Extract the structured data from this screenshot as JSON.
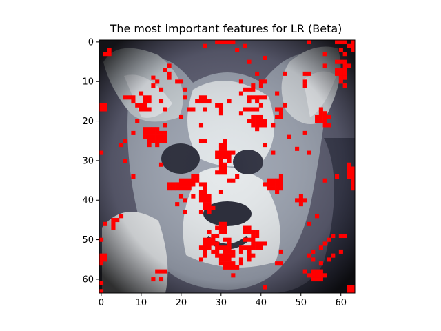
{
  "chart_data": {
    "type": "heatmap",
    "title": "The most important features for LR (Beta)",
    "xlabel": "",
    "ylabel": "",
    "xlim": [
      -0.5,
      63.5
    ],
    "ylim": [
      63.5,
      -0.5
    ],
    "x_ticks": [
      0,
      10,
      20,
      30,
      40,
      50,
      60
    ],
    "y_ticks": [
      0,
      10,
      20,
      30,
      40,
      50,
      60
    ],
    "x_tick_labels": [
      "0",
      "10",
      "20",
      "30",
      "40",
      "50",
      "60"
    ],
    "y_tick_labels": [
      "0",
      "10",
      "20",
      "30",
      "40",
      "50",
      "60"
    ],
    "grid": false,
    "image_size": [
      64,
      64
    ],
    "background": "grayscale photograph of a dog face (bone colormap)",
    "highlight_color": "#ff0000",
    "highlighted_pixels": [
      [
        29,
        0
      ],
      [
        30,
        0
      ],
      [
        31,
        0
      ],
      [
        32,
        0
      ],
      [
        33,
        0
      ],
      [
        52,
        0
      ],
      [
        59,
        0
      ],
      [
        60,
        0
      ],
      [
        61,
        0
      ],
      [
        63,
        0
      ],
      [
        26,
        1
      ],
      [
        36,
        1
      ],
      [
        62,
        1
      ],
      [
        63,
        1
      ],
      [
        2,
        2
      ],
      [
        34,
        2
      ],
      [
        60,
        2
      ],
      [
        63,
        2
      ],
      [
        1,
        3
      ],
      [
        2,
        3
      ],
      [
        56,
        3
      ],
      [
        61,
        3
      ],
      [
        41,
        4
      ],
      [
        37,
        5
      ],
      [
        59,
        5
      ],
      [
        60,
        5
      ],
      [
        61,
        5
      ],
      [
        17,
        6
      ],
      [
        56,
        6
      ],
      [
        61,
        6
      ],
      [
        62,
        6
      ],
      [
        16,
        7
      ],
      [
        59,
        7
      ],
      [
        60,
        7
      ],
      [
        61,
        7
      ],
      [
        17,
        8
      ],
      [
        39,
        8
      ],
      [
        46,
        8
      ],
      [
        51,
        8
      ],
      [
        52,
        8
      ],
      [
        59,
        8
      ],
      [
        60,
        8
      ],
      [
        61,
        8
      ],
      [
        13,
        9
      ],
      [
        17,
        9
      ],
      [
        60,
        9
      ],
      [
        61,
        9
      ],
      [
        14,
        10
      ],
      [
        19,
        10
      ],
      [
        20,
        10
      ],
      [
        35,
        10
      ],
      [
        40,
        10
      ],
      [
        41,
        10
      ],
      [
        51,
        10
      ],
      [
        60,
        10
      ],
      [
        13,
        11
      ],
      [
        38,
        11
      ],
      [
        40,
        11
      ],
      [
        51,
        11
      ],
      [
        61,
        11
      ],
      [
        15,
        12
      ],
      [
        21,
        12
      ],
      [
        36,
        12
      ],
      [
        37,
        12
      ],
      [
        38,
        12
      ],
      [
        10,
        13
      ],
      [
        35,
        13
      ],
      [
        44,
        13
      ],
      [
        6,
        14
      ],
      [
        7,
        14
      ],
      [
        8,
        14
      ],
      [
        11,
        14
      ],
      [
        12,
        14
      ],
      [
        21,
        14
      ],
      [
        25,
        14
      ],
      [
        26,
        14
      ],
      [
        37,
        14
      ],
      [
        38,
        14
      ],
      [
        39,
        14
      ],
      [
        40,
        14
      ],
      [
        41,
        14
      ],
      [
        8,
        15
      ],
      [
        11,
        15
      ],
      [
        12,
        15
      ],
      [
        15,
        15
      ],
      [
        24,
        15
      ],
      [
        25,
        15
      ],
      [
        26,
        15
      ],
      [
        27,
        15
      ],
      [
        32,
        15
      ],
      [
        37,
        15
      ],
      [
        39,
        15
      ],
      [
        0,
        16
      ],
      [
        1,
        16
      ],
      [
        9,
        16
      ],
      [
        10,
        16
      ],
      [
        11,
        16
      ],
      [
        29,
        16
      ],
      [
        30,
        16
      ],
      [
        40,
        16
      ],
      [
        46,
        16
      ],
      [
        0,
        17
      ],
      [
        1,
        17
      ],
      [
        10,
        17
      ],
      [
        11,
        17
      ],
      [
        12,
        17
      ],
      [
        16,
        17
      ],
      [
        22,
        17
      ],
      [
        23,
        17
      ],
      [
        26,
        17
      ],
      [
        30,
        17
      ],
      [
        36,
        17
      ],
      [
        37,
        17
      ],
      [
        38,
        17
      ],
      [
        39,
        17
      ],
      [
        44,
        17
      ],
      [
        45,
        17
      ],
      [
        55,
        17
      ],
      [
        30,
        18
      ],
      [
        35,
        18
      ],
      [
        45,
        18
      ],
      [
        55,
        18
      ],
      [
        56,
        18
      ],
      [
        20,
        19
      ],
      [
        38,
        19
      ],
      [
        39,
        19
      ],
      [
        40,
        19
      ],
      [
        44,
        19
      ],
      [
        45,
        19
      ],
      [
        54,
        19
      ],
      [
        55,
        19
      ],
      [
        56,
        19
      ],
      [
        57,
        19
      ],
      [
        9,
        20
      ],
      [
        37,
        20
      ],
      [
        38,
        20
      ],
      [
        39,
        20
      ],
      [
        40,
        20
      ],
      [
        41,
        20
      ],
      [
        54,
        20
      ],
      [
        55,
        20
      ],
      [
        56,
        20
      ],
      [
        16,
        21
      ],
      [
        25,
        21
      ],
      [
        38,
        21
      ],
      [
        39,
        21
      ],
      [
        40,
        21
      ],
      [
        41,
        21
      ],
      [
        43,
        21
      ],
      [
        56,
        21
      ],
      [
        57,
        21
      ],
      [
        11,
        22
      ],
      [
        12,
        22
      ],
      [
        13,
        22
      ],
      [
        14,
        22
      ],
      [
        39,
        22
      ],
      [
        8,
        23
      ],
      [
        11,
        23
      ],
      [
        12,
        23
      ],
      [
        13,
        23
      ],
      [
        14,
        23
      ],
      [
        15,
        23
      ],
      [
        16,
        23
      ],
      [
        51,
        23
      ],
      [
        11,
        24
      ],
      [
        12,
        24
      ],
      [
        13,
        24
      ],
      [
        14,
        24
      ],
      [
        15,
        24
      ],
      [
        16,
        24
      ],
      [
        47,
        24
      ],
      [
        6,
        25
      ],
      [
        12,
        25
      ],
      [
        13,
        25
      ],
      [
        14,
        25
      ],
      [
        15,
        25
      ],
      [
        16,
        25
      ],
      [
        25,
        25
      ],
      [
        26,
        25
      ],
      [
        31,
        25
      ],
      [
        5,
        26
      ],
      [
        12,
        26
      ],
      [
        14,
        26
      ],
      [
        30,
        26
      ],
      [
        31,
        26
      ],
      [
        41,
        26
      ],
      [
        30,
        27
      ],
      [
        31,
        27
      ],
      [
        49,
        27
      ],
      [
        0,
        28
      ],
      [
        29,
        28
      ],
      [
        30,
        28
      ],
      [
        31,
        28
      ],
      [
        32,
        28
      ],
      [
        33,
        28
      ],
      [
        43,
        28
      ],
      [
        52,
        28
      ],
      [
        29,
        29
      ],
      [
        30,
        29
      ],
      [
        31,
        29
      ],
      [
        32,
        29
      ],
      [
        6,
        30
      ],
      [
        30,
        30
      ],
      [
        32,
        30
      ],
      [
        15,
        31
      ],
      [
        30,
        31
      ],
      [
        31,
        31
      ],
      [
        62,
        31
      ],
      [
        30,
        32
      ],
      [
        31,
        32
      ],
      [
        62,
        32
      ],
      [
        63,
        32
      ],
      [
        29,
        33
      ],
      [
        30,
        33
      ],
      [
        31,
        33
      ],
      [
        62,
        33
      ],
      [
        63,
        33
      ],
      [
        8,
        34
      ],
      [
        23,
        34
      ],
      [
        24,
        34
      ],
      [
        34,
        34
      ],
      [
        45,
        34
      ],
      [
        59,
        34
      ],
      [
        62,
        34
      ],
      [
        63,
        34
      ],
      [
        20,
        35
      ],
      [
        21,
        35
      ],
      [
        22,
        35
      ],
      [
        23,
        35
      ],
      [
        24,
        35
      ],
      [
        32,
        35
      ],
      [
        33,
        35
      ],
      [
        42,
        35
      ],
      [
        43,
        35
      ],
      [
        44,
        35
      ],
      [
        45,
        35
      ],
      [
        56,
        35
      ],
      [
        63,
        35
      ],
      [
        17,
        36
      ],
      [
        18,
        36
      ],
      [
        19,
        36
      ],
      [
        20,
        36
      ],
      [
        21,
        36
      ],
      [
        22,
        36
      ],
      [
        23,
        36
      ],
      [
        25,
        36
      ],
      [
        26,
        36
      ],
      [
        41,
        36
      ],
      [
        42,
        36
      ],
      [
        43,
        36
      ],
      [
        44,
        36
      ],
      [
        45,
        36
      ],
      [
        63,
        36
      ],
      [
        17,
        37
      ],
      [
        18,
        37
      ],
      [
        19,
        37
      ],
      [
        20,
        37
      ],
      [
        21,
        37
      ],
      [
        22,
        37
      ],
      [
        26,
        37
      ],
      [
        42,
        37
      ],
      [
        43,
        37
      ],
      [
        44,
        37
      ],
      [
        45,
        37
      ],
      [
        63,
        37
      ],
      [
        25,
        38
      ],
      [
        26,
        38
      ],
      [
        30,
        38
      ],
      [
        44,
        38
      ],
      [
        20,
        39
      ],
      [
        23,
        39
      ],
      [
        25,
        39
      ],
      [
        26,
        39
      ],
      [
        27,
        39
      ],
      [
        50,
        39
      ],
      [
        21,
        40
      ],
      [
        25,
        40
      ],
      [
        26,
        40
      ],
      [
        27,
        40
      ],
      [
        49,
        40
      ],
      [
        50,
        40
      ],
      [
        51,
        40
      ],
      [
        19,
        41
      ],
      [
        26,
        41
      ],
      [
        27,
        41
      ],
      [
        50,
        41
      ],
      [
        26,
        42
      ],
      [
        27,
        42
      ],
      [
        28,
        42
      ],
      [
        21,
        43
      ],
      [
        25,
        43
      ],
      [
        27,
        43
      ],
      [
        5,
        44
      ],
      [
        54,
        44
      ],
      [
        3,
        45
      ],
      [
        4,
        45
      ],
      [
        1,
        46
      ],
      [
        3,
        46
      ],
      [
        30,
        46
      ],
      [
        31,
        46
      ],
      [
        52,
        46
      ],
      [
        3,
        47
      ],
      [
        29,
        47
      ],
      [
        30,
        47
      ],
      [
        31,
        47
      ],
      [
        36,
        47
      ],
      [
        37,
        47
      ],
      [
        27,
        48
      ],
      [
        30,
        48
      ],
      [
        31,
        48
      ],
      [
        36,
        48
      ],
      [
        37,
        48
      ],
      [
        38,
        48
      ],
      [
        39,
        48
      ],
      [
        28,
        49
      ],
      [
        29,
        49
      ],
      [
        38,
        49
      ],
      [
        39,
        49
      ],
      [
        58,
        49
      ],
      [
        60,
        49
      ],
      [
        61,
        49
      ],
      [
        0,
        50
      ],
      [
        26,
        50
      ],
      [
        27,
        50
      ],
      [
        28,
        50
      ],
      [
        31,
        50
      ],
      [
        32,
        50
      ],
      [
        36,
        50
      ],
      [
        37,
        50
      ],
      [
        38,
        50
      ],
      [
        57,
        50
      ],
      [
        26,
        51
      ],
      [
        27,
        51
      ],
      [
        28,
        51
      ],
      [
        29,
        51
      ],
      [
        32,
        51
      ],
      [
        38,
        51
      ],
      [
        39,
        51
      ],
      [
        40,
        51
      ],
      [
        41,
        51
      ],
      [
        56,
        51
      ],
      [
        25,
        52
      ],
      [
        26,
        52
      ],
      [
        27,
        52
      ],
      [
        29,
        52
      ],
      [
        30,
        52
      ],
      [
        31,
        52
      ],
      [
        32,
        52
      ],
      [
        35,
        52
      ],
      [
        36,
        52
      ],
      [
        37,
        52
      ],
      [
        38,
        52
      ],
      [
        39,
        52
      ],
      [
        40,
        52
      ],
      [
        55,
        52
      ],
      [
        26,
        53
      ],
      [
        28,
        53
      ],
      [
        29,
        53
      ],
      [
        31,
        53
      ],
      [
        32,
        53
      ],
      [
        33,
        53
      ],
      [
        35,
        53
      ],
      [
        37,
        53
      ],
      [
        45,
        53
      ],
      [
        53,
        53
      ],
      [
        60,
        53
      ],
      [
        0,
        54
      ],
      [
        1,
        54
      ],
      [
        26,
        54
      ],
      [
        29,
        54
      ],
      [
        30,
        54
      ],
      [
        31,
        54
      ],
      [
        32,
        54
      ],
      [
        33,
        54
      ],
      [
        37,
        54
      ],
      [
        38,
        54
      ],
      [
        52,
        54
      ],
      [
        58,
        54
      ],
      [
        0,
        55
      ],
      [
        1,
        55
      ],
      [
        25,
        55
      ],
      [
        30,
        55
      ],
      [
        31,
        55
      ],
      [
        32,
        55
      ],
      [
        35,
        55
      ],
      [
        37,
        55
      ],
      [
        53,
        55
      ],
      [
        57,
        55
      ],
      [
        0,
        56
      ],
      [
        30,
        56
      ],
      [
        31,
        56
      ],
      [
        32,
        56
      ],
      [
        33,
        56
      ],
      [
        35,
        56
      ],
      [
        44,
        56
      ],
      [
        45,
        56
      ],
      [
        55,
        56
      ],
      [
        31,
        57
      ],
      [
        32,
        57
      ],
      [
        33,
        57
      ],
      [
        34,
        57
      ],
      [
        14,
        58
      ],
      [
        15,
        58
      ],
      [
        16,
        58
      ],
      [
        51,
        58
      ],
      [
        53,
        58
      ],
      [
        54,
        58
      ],
      [
        55,
        58
      ],
      [
        33,
        59
      ],
      [
        52,
        59
      ],
      [
        53,
        59
      ],
      [
        54,
        59
      ],
      [
        55,
        59
      ],
      [
        56,
        59
      ],
      [
        13,
        60
      ],
      [
        15,
        60
      ],
      [
        53,
        60
      ],
      [
        54,
        60
      ],
      [
        55,
        60
      ],
      [
        0,
        61
      ],
      [
        41,
        62
      ],
      [
        62,
        62
      ],
      [
        63,
        62
      ],
      [
        0,
        63
      ],
      [
        62,
        63
      ],
      [
        63,
        63
      ]
    ]
  }
}
